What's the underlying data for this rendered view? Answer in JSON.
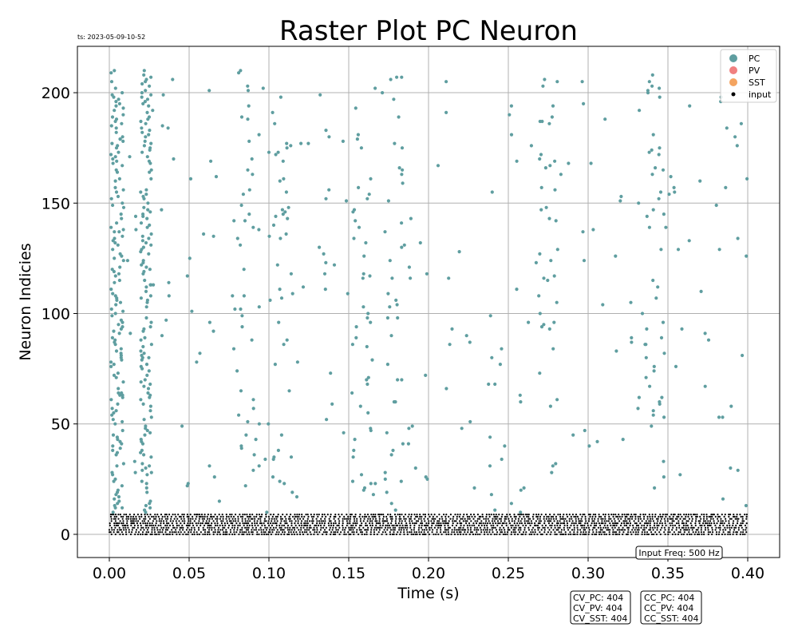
{
  "chart_data": {
    "type": "scatter",
    "title": "Raster Plot PC Neuron",
    "timestamp": "ts: 2023-05-09-10-52",
    "xlabel": "Time (s)",
    "ylabel": "Neuron Indicies",
    "xlim": [
      -0.02,
      0.42
    ],
    "ylim": [
      -10.5,
      221
    ],
    "xticks": [
      0.0,
      0.05,
      0.1,
      0.15,
      0.2,
      0.25,
      0.3,
      0.35,
      0.4
    ],
    "xtick_labels": [
      "0.00",
      "0.05",
      "0.10",
      "0.15",
      "0.20",
      "0.25",
      "0.30",
      "0.35",
      "0.40"
    ],
    "yticks": [
      0,
      50,
      100,
      150,
      200
    ],
    "ytick_labels": [
      "0",
      "50",
      "100",
      "150",
      "200"
    ],
    "grid": true,
    "legend_position": "top-right",
    "series": [
      {
        "name": "PC",
        "color": "#5f9ea0",
        "neuron_range": [
          10,
          210
        ],
        "burst_times": [
          0.005,
          0.023,
          0.088,
          0.108,
          0.158,
          0.178,
          0.275,
          0.342
        ],
        "time_range": [
          0.0,
          0.4
        ]
      },
      {
        "name": "PV",
        "color": "#f08080",
        "values": []
      },
      {
        "name": "SST",
        "color": "#f4a460",
        "values": []
      },
      {
        "name": "input",
        "color": "#000000",
        "neuron_range": [
          0,
          9
        ],
        "time_range": [
          0.0,
          0.4
        ]
      }
    ],
    "annotations": [
      {
        "id": "input-freq",
        "text": "Input Freq: 500 Hz"
      },
      {
        "id": "cv-box",
        "lines": [
          "CV_PC: 404",
          "CV_PV: 404",
          "CV_SST: 404"
        ]
      },
      {
        "id": "cc-box",
        "lines": [
          "CC_PC: 404",
          "CC_PV: 404",
          "CC_SST: 404"
        ]
      }
    ]
  }
}
